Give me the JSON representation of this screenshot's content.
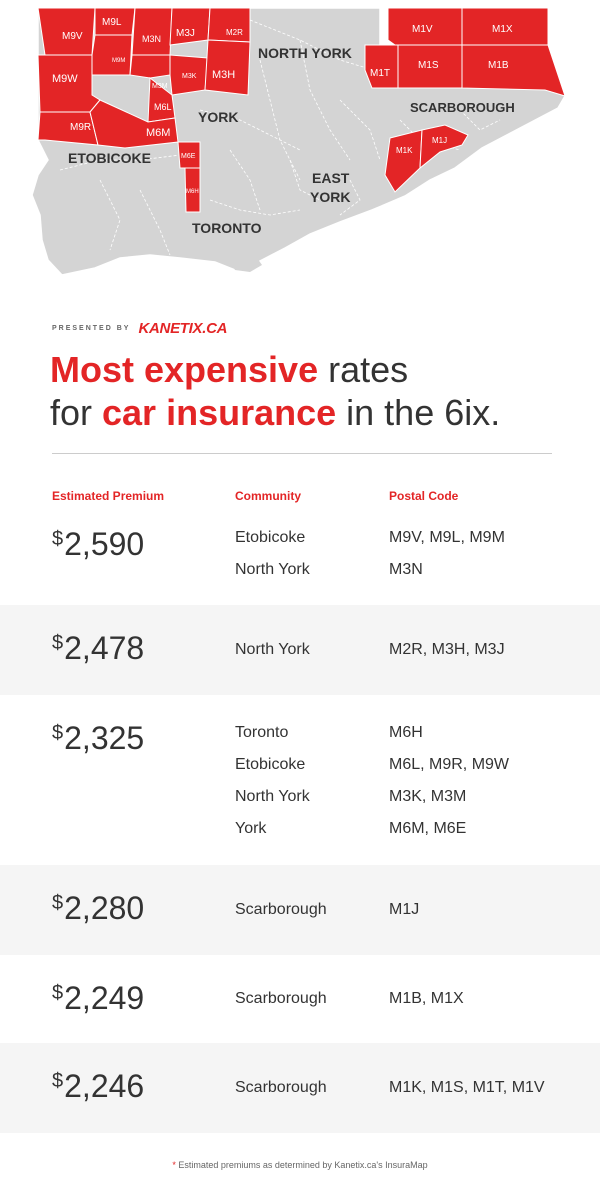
{
  "map": {
    "regions": [
      "NORTH YORK",
      "YORK",
      "ETOBICOKE",
      "SCARBOROUGH",
      "EAST YORK",
      "TORONTO"
    ],
    "postal_codes": [
      "M9L",
      "M9V",
      "M3N",
      "M3J",
      "M2R",
      "M9M",
      "M9W",
      "M3M",
      "M3K",
      "M3H",
      "M6L",
      "M9R",
      "M6M",
      "M6E",
      "M6H",
      "M1V",
      "M1X",
      "M1T",
      "M1S",
      "M1B",
      "M1K",
      "M1J"
    ],
    "colors": {
      "land": "#d4d4d4",
      "highlight": "#e32526",
      "border": "#ffffff"
    }
  },
  "presented": {
    "by": "PRESENTED BY",
    "brand": "KANETIX.CA"
  },
  "headline": {
    "line1_hl": "Most expensive",
    "line1_rest": " rates",
    "line2_pre": "for ",
    "line2_hl": "car insurance",
    "line2_rest": " in the 6ix."
  },
  "columns": {
    "premium": "Estimated Premium",
    "community": "Community",
    "postal": "Postal Code"
  },
  "rows": [
    {
      "currency": "$",
      "price": "2,590",
      "communities": [
        "Etobicoke",
        "North York"
      ],
      "postal": [
        "M9V, M9L, M9M",
        "M3N"
      ]
    },
    {
      "currency": "$",
      "price": "2,478",
      "communities": [
        "North York"
      ],
      "postal": [
        "M2R, M3H, M3J"
      ]
    },
    {
      "currency": "$",
      "price": "2,325",
      "communities": [
        "Toronto",
        "Etobicoke",
        "North York",
        "York"
      ],
      "postal": [
        "M6H",
        "M6L, M9R, M9W",
        "M3K, M3M",
        "M6M, M6E"
      ]
    },
    {
      "currency": "$",
      "price": "2,280",
      "communities": [
        "Scarborough"
      ],
      "postal": [
        "M1J"
      ]
    },
    {
      "currency": "$",
      "price": "2,249",
      "communities": [
        "Scarborough"
      ],
      "postal": [
        "M1B, M1X"
      ]
    },
    {
      "currency": "$",
      "price": "2,246",
      "communities": [
        "Scarborough"
      ],
      "postal": [
        "M1K, M1S, M1T, M1V"
      ]
    }
  ],
  "footnote": {
    "star": "*",
    "text": " Estimated premiums as determined by Kanetix.ca's InsuraMap"
  },
  "colors": {
    "accent": "#e32526",
    "text": "#333333",
    "shade": "#f5f5f5"
  }
}
